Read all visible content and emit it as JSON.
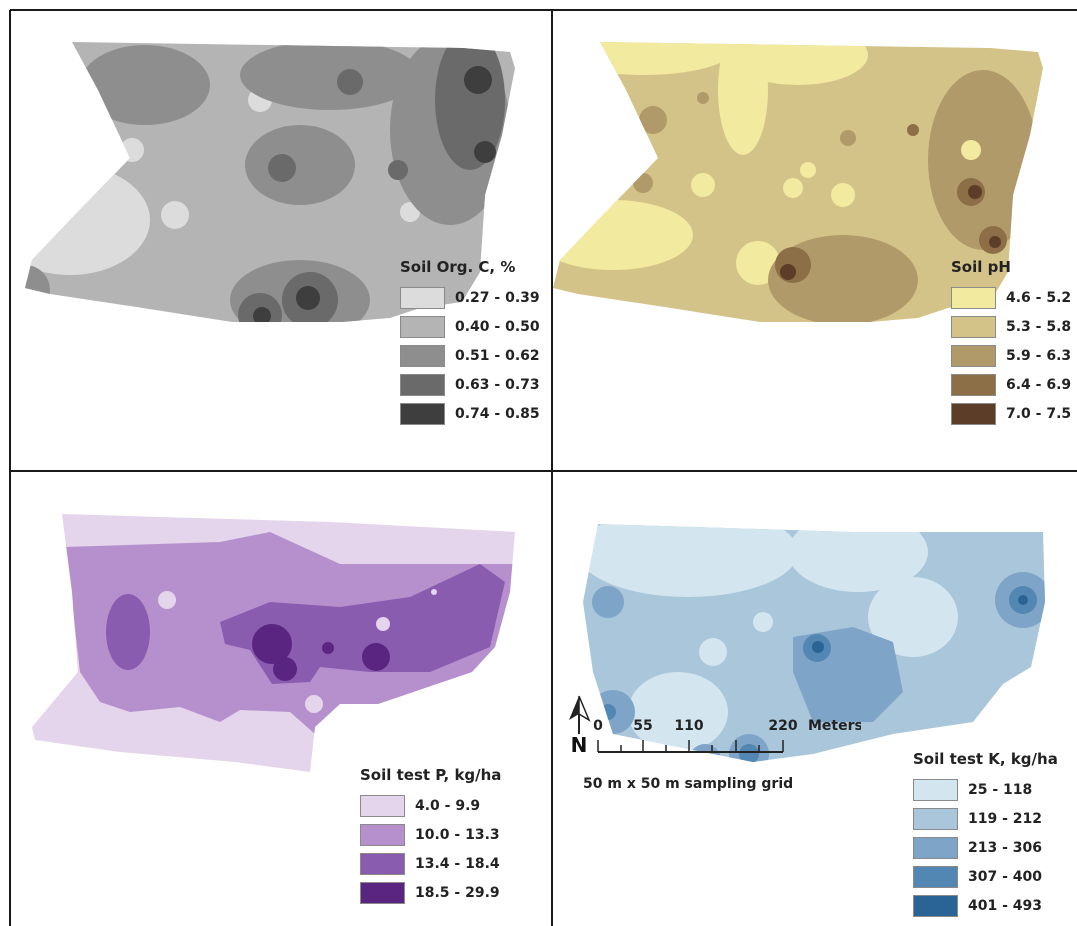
{
  "colors": {
    "frame": "#1a1a1a",
    "background": "#ffffff"
  },
  "panels": [
    {
      "id": "organic-carbon",
      "legend_title": "Soil Org. C, %",
      "classes": [
        {
          "label": "0.27 - 0.39",
          "color": "#dcdcdc"
        },
        {
          "label": "0.40 - 0.50",
          "color": "#b4b4b4"
        },
        {
          "label": "0.51 - 0.62",
          "color": "#8e8e8e"
        },
        {
          "label": "0.63 - 0.73",
          "color": "#6a6a6a"
        },
        {
          "label": "0.74 - 0.85",
          "color": "#3e3e3e"
        }
      ]
    },
    {
      "id": "ph",
      "legend_title": "Soil pH",
      "classes": [
        {
          "label": "4.6 - 5.2",
          "color": "#f1ea9f"
        },
        {
          "label": "5.3 - 5.8",
          "color": "#d4c389"
        },
        {
          "label": "5.9 - 6.3",
          "color": "#b09a6a"
        },
        {
          "label": "6.4 - 6.9",
          "color": "#8c6e47"
        },
        {
          "label": "7.0 - 7.5",
          "color": "#5c3e28"
        }
      ]
    },
    {
      "id": "phosphorus",
      "legend_title": "Soil test P, kg/ha",
      "classes": [
        {
          "label": "4.0 - 9.9",
          "color": "#e4d4ec"
        },
        {
          "label": "10.0 - 13.3",
          "color": "#b690cc"
        },
        {
          "label": "13.4 - 18.4",
          "color": "#8a5cb0"
        },
        {
          "label": "18.5 - 29.9",
          "color": "#5a2580"
        }
      ]
    },
    {
      "id": "potassium",
      "legend_title": "Soil test K, kg/ha",
      "classes": [
        {
          "label": "25 - 118",
          "color": "#d3e5ef"
        },
        {
          "label": "119 - 212",
          "color": "#a9c6db"
        },
        {
          "label": "213 - 306",
          "color": "#7ea5c7"
        },
        {
          "label": "307 - 400",
          "color": "#5286b3"
        },
        {
          "label": "401 - 493",
          "color": "#2a6496"
        }
      ]
    }
  ],
  "scale_bar": {
    "ticks": [
      "0",
      "55",
      "110",
      "220"
    ],
    "unit": "Meters",
    "grid_note": "50 m x 50 m sampling grid"
  },
  "north_arrow": {
    "label": "N"
  }
}
